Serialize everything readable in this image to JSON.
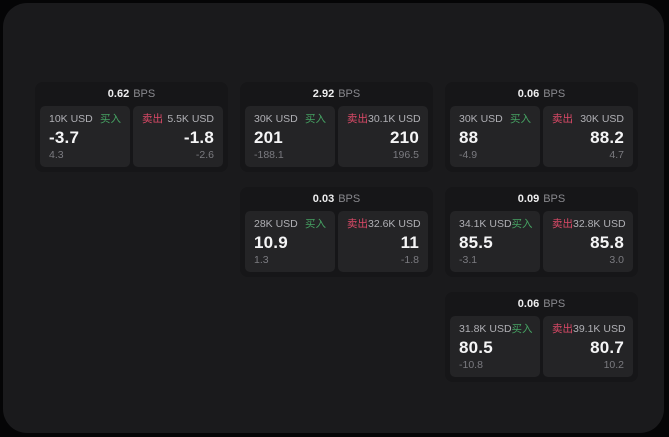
{
  "labels": {
    "bps_unit": "BPS",
    "buy": "买入",
    "sell": "卖出"
  },
  "colors": {
    "buy_green": "#46a363",
    "sell_red": "#dd4a68",
    "panel_bg": "#1a1a1c",
    "card_bg": "#161618",
    "pane_bg": "#242426"
  },
  "cards": [
    {
      "row": 0,
      "col": 0,
      "bps": "0.62",
      "buy": {
        "notional": "10K USD",
        "main": "-3.7",
        "sub": "4.3"
      },
      "sell": {
        "notional": "5.5K USD",
        "main": "-1.8",
        "sub": "-2.6"
      }
    },
    {
      "row": 0,
      "col": 1,
      "bps": "2.92",
      "buy": {
        "notional": "30K USD",
        "main": "201",
        "sub": "-188.1"
      },
      "sell": {
        "notional": "30.1K USD",
        "main": "210",
        "sub": "196.5"
      }
    },
    {
      "row": 0,
      "col": 2,
      "bps": "0.06",
      "buy": {
        "notional": "30K USD",
        "main": "88",
        "sub": "-4.9"
      },
      "sell": {
        "notional": "30K USD",
        "main": "88.2",
        "sub": "4.7"
      }
    },
    {
      "row": 1,
      "col": 1,
      "bps": "0.03",
      "buy": {
        "notional": "28K USD",
        "main": "10.9",
        "sub": "1.3"
      },
      "sell": {
        "notional": "32.6K USD",
        "main": "11",
        "sub": "-1.8"
      }
    },
    {
      "row": 1,
      "col": 2,
      "bps": "0.09",
      "buy": {
        "notional": "34.1K USD",
        "main": "85.5",
        "sub": "-3.1"
      },
      "sell": {
        "notional": "32.8K USD",
        "main": "85.8",
        "sub": "3.0"
      }
    },
    {
      "row": 2,
      "col": 2,
      "bps": "0.06",
      "buy": {
        "notional": "31.8K USD",
        "main": "80.5",
        "sub": "-10.8"
      },
      "sell": {
        "notional": "39.1K USD",
        "main": "80.7",
        "sub": "10.2"
      }
    }
  ]
}
